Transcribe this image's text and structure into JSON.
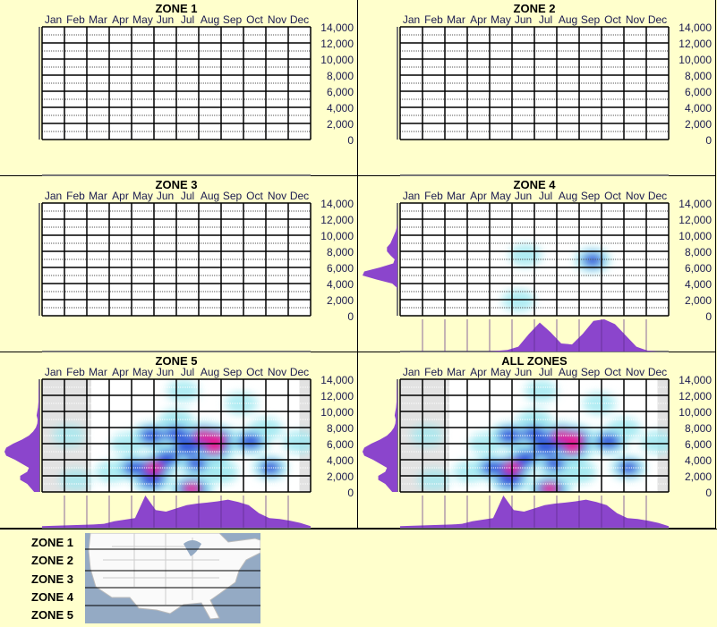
{
  "colors": {
    "background": "#FFFFCC",
    "density": "#8B45CC",
    "cyan": "#9EE8F0",
    "blue": "#1E3CD8",
    "pink": "#F0148C"
  },
  "chart_data": [
    {
      "type": "heatmap",
      "title": "ZONE 1",
      "months": [
        "Jan",
        "Feb",
        "Mar",
        "Apr",
        "May",
        "Jun",
        "Jul",
        "Aug",
        "Sep",
        "Oct",
        "Nov",
        "Dec"
      ],
      "yticks": [
        "14,000",
        "12,000",
        "10,000",
        "8,000",
        "6,000",
        "4,000",
        "2,000",
        "0"
      ],
      "ylim": [
        0,
        14000
      ],
      "hotspots": [],
      "shaded_months": [],
      "elev_density": [],
      "month_density": []
    },
    {
      "type": "heatmap",
      "title": "ZONE 2",
      "months": [
        "Jan",
        "Feb",
        "Mar",
        "Apr",
        "May",
        "Jun",
        "Jul",
        "Aug",
        "Sep",
        "Oct",
        "Nov",
        "Dec"
      ],
      "yticks": [
        "14,000",
        "12,000",
        "10,000",
        "8,000",
        "6,000",
        "4,000",
        "2,000",
        "0"
      ],
      "ylim": [
        0,
        14000
      ],
      "hotspots": [],
      "shaded_months": [],
      "elev_density": [],
      "month_density": []
    },
    {
      "type": "heatmap",
      "title": "ZONE 3",
      "months": [
        "Jan",
        "Feb",
        "Mar",
        "Apr",
        "May",
        "Jun",
        "Jul",
        "Aug",
        "Sep",
        "Oct",
        "Nov",
        "Dec"
      ],
      "yticks": [
        "14,000",
        "12,000",
        "10,000",
        "8,000",
        "6,000",
        "4,000",
        "2,000",
        "0"
      ],
      "ylim": [
        0,
        14000
      ],
      "hotspots": [],
      "shaded_months": [],
      "elev_density": [],
      "month_density": []
    },
    {
      "type": "heatmap",
      "title": "ZONE 4",
      "months": [
        "Jan",
        "Feb",
        "Mar",
        "Apr",
        "May",
        "Jun",
        "Jul",
        "Aug",
        "Sep",
        "Oct",
        "Nov",
        "Dec"
      ],
      "yticks": [
        "14,000",
        "12,000",
        "10,000",
        "8,000",
        "6,000",
        "4,000",
        "2,000",
        "0"
      ],
      "ylim": [
        0,
        14000
      ],
      "hotspots": [
        [
          5.6,
          7500,
          0.3
        ],
        [
          8.6,
          6900,
          0.45
        ],
        [
          5.3,
          1900,
          0.3
        ]
      ],
      "shaded_months": [],
      "elev_density": [
        0,
        0,
        0,
        0,
        0,
        0,
        0,
        0.02,
        0.15,
        0.6,
        1,
        0.95,
        0.5,
        0.12,
        0.08,
        0.2,
        0.3,
        0.3,
        0.2,
        0.15,
        0.1,
        0.05,
        0.02,
        0,
        0,
        0,
        0,
        0,
        0
      ],
      "month_density": [
        0,
        0,
        0,
        0,
        0,
        0,
        0,
        0,
        0,
        0.02,
        0.05,
        0.15,
        0.55,
        0.9,
        0.6,
        0.25,
        0.22,
        0.55,
        0.95,
        1,
        0.85,
        0.5,
        0.15,
        0.03,
        0,
        0
      ]
    },
    {
      "type": "heatmap",
      "title": "ZONE 5",
      "months": [
        "Jan",
        "Feb",
        "Mar",
        "Apr",
        "May",
        "Jun",
        "Jul",
        "Aug",
        "Sep",
        "Oct",
        "Nov",
        "Dec"
      ],
      "yticks": [
        "14,000",
        "12,000",
        "10,000",
        "8,000",
        "6,000",
        "4,000",
        "2,000",
        "0"
      ],
      "ylim": [
        0,
        14000
      ],
      "hotspots": [
        [
          1.2,
          7000,
          0.25
        ],
        [
          3.1,
          2500,
          0.3
        ],
        [
          4.1,
          3000,
          0.55
        ],
        [
          4.9,
          7000,
          0.7
        ],
        [
          5.0,
          3000,
          1
        ],
        [
          4.9,
          1500,
          0.75
        ],
        [
          5.6,
          4200,
          0.6
        ],
        [
          6.0,
          7200,
          0.7
        ],
        [
          6.0,
          8800,
          0.4
        ],
        [
          6.3,
          12500,
          0.3
        ],
        [
          6.5,
          5500,
          0.8
        ],
        [
          7.2,
          6900,
          1
        ],
        [
          7.8,
          6600,
          1
        ],
        [
          7.7,
          5500,
          0.95
        ],
        [
          6.7,
          400,
          0.95
        ],
        [
          8.0,
          2500,
          0.4
        ],
        [
          9.3,
          6300,
          0.7
        ],
        [
          8.9,
          11000,
          0.3
        ],
        [
          10.0,
          7800,
          0.35
        ],
        [
          10.2,
          3000,
          0.45
        ],
        [
          11.5,
          6200,
          0.35
        ],
        [
          6.9,
          3500,
          0.45
        ],
        [
          3.8,
          6000,
          0.3
        ],
        [
          1.5,
          1500,
          0.25
        ]
      ],
      "shaded_months": [
        [
          0,
          2.2
        ],
        [
          11.5,
          12
        ]
      ],
      "elev_density": [
        0.15,
        0.25,
        0.35,
        0.55,
        0.55,
        0.35,
        0.3,
        0.5,
        0.7,
        0.95,
        1,
        0.95,
        0.75,
        0.5,
        0.3,
        0.18,
        0.1,
        0.06,
        0.05,
        0.08,
        0.06,
        0.04,
        0.03,
        0.02,
        0.02,
        0.02,
        0.01,
        0.01,
        0
      ],
      "month_density": [
        0.05,
        0.06,
        0.07,
        0.08,
        0.09,
        0.1,
        0.12,
        0.2,
        0.25,
        0.3,
        1,
        0.55,
        0.5,
        0.6,
        0.7,
        0.75,
        0.78,
        0.82,
        0.87,
        0.8,
        0.7,
        0.45,
        0.3,
        0.27,
        0.22,
        0.15,
        0.05
      ]
    },
    {
      "type": "heatmap",
      "title": "ALL ZONES",
      "months": [
        "Jan",
        "Feb",
        "Mar",
        "Apr",
        "May",
        "Jun",
        "Jul",
        "Aug",
        "Sep",
        "Oct",
        "Nov",
        "Dec"
      ],
      "yticks": [
        "14,000",
        "12,000",
        "10,000",
        "8,000",
        "6,000",
        "4,000",
        "2,000",
        "0"
      ],
      "ylim": [
        0,
        14000
      ],
      "hotspots": [
        [
          1.2,
          7000,
          0.25
        ],
        [
          3.1,
          2500,
          0.3
        ],
        [
          4.1,
          3000,
          0.55
        ],
        [
          4.9,
          7000,
          0.7
        ],
        [
          5.0,
          3000,
          1
        ],
        [
          4.9,
          1500,
          0.75
        ],
        [
          5.6,
          4200,
          0.6
        ],
        [
          6.0,
          7200,
          0.7
        ],
        [
          6.0,
          8800,
          0.4
        ],
        [
          6.3,
          12500,
          0.3
        ],
        [
          6.5,
          5500,
          0.8
        ],
        [
          7.2,
          6900,
          1
        ],
        [
          7.8,
          6600,
          1
        ],
        [
          7.7,
          5500,
          0.95
        ],
        [
          6.7,
          400,
          0.95
        ],
        [
          8.0,
          2500,
          0.4
        ],
        [
          9.3,
          6300,
          0.7
        ],
        [
          8.9,
          11000,
          0.3
        ],
        [
          10.0,
          7800,
          0.35
        ],
        [
          10.2,
          3000,
          0.45
        ],
        [
          11.5,
          6200,
          0.35
        ],
        [
          6.9,
          3500,
          0.45
        ],
        [
          3.8,
          6000,
          0.3
        ],
        [
          1.5,
          1500,
          0.25
        ]
      ],
      "shaded_months": [
        [
          0,
          2.2
        ],
        [
          11.5,
          12
        ]
      ],
      "elev_density": [
        0.15,
        0.25,
        0.35,
        0.55,
        0.55,
        0.35,
        0.3,
        0.5,
        0.7,
        0.95,
        1,
        0.95,
        0.75,
        0.5,
        0.3,
        0.18,
        0.1,
        0.06,
        0.05,
        0.08,
        0.06,
        0.04,
        0.03,
        0.02,
        0.02,
        0.02,
        0.01,
        0.01,
        0
      ],
      "month_density": [
        0.05,
        0.06,
        0.07,
        0.08,
        0.09,
        0.1,
        0.12,
        0.2,
        0.25,
        0.3,
        1,
        0.55,
        0.5,
        0.6,
        0.7,
        0.75,
        0.78,
        0.82,
        0.87,
        0.8,
        0.7,
        0.45,
        0.3,
        0.27,
        0.22,
        0.15,
        0.05
      ]
    }
  ],
  "legend": {
    "zones": [
      "ZONE 1",
      "ZONE 2",
      "ZONE 3",
      "ZONE 4",
      "ZONE 5"
    ]
  }
}
